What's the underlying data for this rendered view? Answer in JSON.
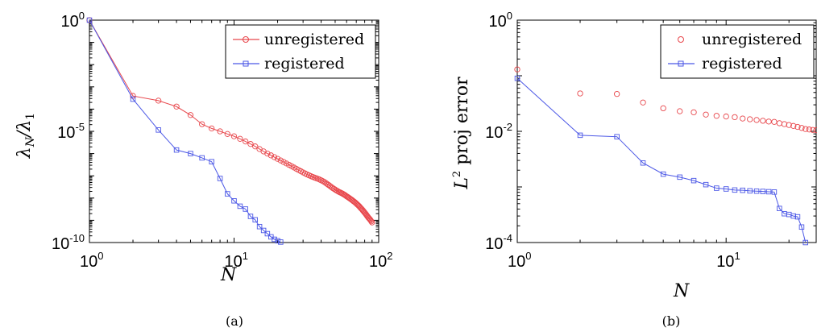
{
  "chart_data": [
    {
      "type": "line",
      "panel": "(a)",
      "xscale": "log",
      "yscale": "log",
      "xlim": [
        1,
        100
      ],
      "ylim": [
        1e-10,
        1
      ],
      "x_ticks": [
        {
          "base": "10",
          "exp": "0",
          "value": 1
        },
        {
          "base": "10",
          "exp": "1",
          "value": 10
        },
        {
          "base": "10",
          "exp": "2",
          "value": 100
        }
      ],
      "y_ticks": [
        {
          "base": "10",
          "exp": "0",
          "value": 1
        },
        {
          "base": "10",
          "exp": "-5",
          "value": 1e-05
        },
        {
          "base": "10",
          "exp": "-10",
          "value": 1e-10
        }
      ],
      "xlabel": "N",
      "ylabel": "λN/λ1",
      "grid": false,
      "legend_position": "top-right",
      "series": [
        {
          "name": "unregistered",
          "color": "#e8474c",
          "marker": "circle",
          "x": [
            1,
            2,
            3,
            4,
            5,
            6,
            7,
            8,
            9,
            10,
            11,
            12,
            13,
            14,
            15,
            16,
            17,
            18,
            19,
            20,
            21,
            22,
            23,
            24,
            25,
            26,
            27,
            28,
            29,
            30,
            31,
            32,
            33,
            34,
            35,
            36,
            37,
            38,
            39,
            40,
            41,
            42,
            43,
            44,
            45,
            46,
            47,
            48,
            49,
            50,
            51,
            52,
            53,
            54,
            55,
            56,
            57,
            58,
            59,
            60,
            61,
            62,
            63,
            64,
            65,
            66,
            67,
            68,
            69,
            70,
            71,
            72,
            73,
            74,
            75,
            76,
            77,
            78,
            79,
            80,
            81,
            82,
            83,
            84,
            85,
            86,
            87,
            88,
            89,
            90
          ],
          "y": [
            1,
            0.00039,
            0.00024,
            0.00013,
            5.4e-05,
            2.1e-05,
            1.35e-05,
            1e-05,
            7.6e-06,
            6e-06,
            4.6e-06,
            3.5e-06,
            2.7e-06,
            2.1e-06,
            1.6e-06,
            1.25e-06,
            1e-06,
            8.3e-07,
            6.9e-07,
            5.8e-07,
            4.9e-07,
            4.2e-07,
            3.6e-07,
            3.1e-07,
            2.7e-07,
            2.35e-07,
            2.05e-07,
            1.8e-07,
            1.6e-07,
            1.42e-07,
            1.27e-07,
            1.15e-07,
            1.05e-07,
            9.6e-08,
            8.9e-08,
            8.3e-08,
            7.8e-08,
            7.3e-08,
            6.8e-08,
            6.3e-08,
            5.8e-08,
            5.3e-08,
            4.8e-08,
            4.3e-08,
            3.9e-08,
            3.5e-08,
            3.15e-08,
            2.85e-08,
            2.6e-08,
            2.4e-08,
            2.2e-08,
            2.05e-08,
            1.9e-08,
            1.8e-08,
            1.7e-08,
            1.6e-08,
            1.5e-08,
            1.4e-08,
            1.3e-08,
            1.2e-08,
            1.12e-08,
            1.04e-08,
            9.7e-09,
            9e-09,
            8.4e-09,
            7.8e-09,
            7.2e-09,
            6.7e-09,
            6.2e-09,
            5.7e-09,
            5.2e-09,
            4.8e-09,
            4.4e-09,
            4e-09,
            3.6e-09,
            3.3e-09,
            3e-09,
            2.7e-09,
            2.45e-09,
            2.2e-09,
            2e-09,
            1.8e-09,
            1.6e-09,
            1.45e-09,
            1.3e-09,
            1.2e-09,
            1.1e-09,
            1e-09,
            9e-10,
            8e-10
          ]
        },
        {
          "name": "registered",
          "color": "#4b57e6",
          "marker": "square",
          "x": [
            1,
            2,
            3,
            4,
            5,
            6,
            7,
            8,
            9,
            10,
            11,
            12,
            13,
            14,
            15,
            16,
            17,
            18,
            19,
            20,
            21
          ],
          "y": [
            1,
            0.00028,
            1.15e-05,
            1.45e-06,
            1e-06,
            6.4e-07,
            4.3e-07,
            7.6e-08,
            1.55e-08,
            7.5e-09,
            4.3e-09,
            3.2e-09,
            1.5e-09,
            1.05e-09,
            5.2e-10,
            3.5e-10,
            2.5e-10,
            1.8e-10,
            1.4e-10,
            1.2e-10,
            1.05e-10
          ]
        }
      ]
    },
    {
      "type": "line",
      "panel": "(b)",
      "xscale": "log",
      "yscale": "log",
      "xlim": [
        1,
        27
      ],
      "ylim": [
        0.0001,
        1
      ],
      "x_ticks": [
        {
          "base": "10",
          "exp": "0",
          "value": 1
        },
        {
          "base": "10",
          "exp": "1",
          "value": 10
        }
      ],
      "y_ticks": [
        {
          "base": "10",
          "exp": "0",
          "value": 1
        },
        {
          "base": "10",
          "exp": "-2",
          "value": 0.01
        },
        {
          "base": "10",
          "exp": "-4",
          "value": 0.0001
        }
      ],
      "xlabel": "N",
      "ylabel": "L2 proj error",
      "grid": false,
      "legend_position": "top-right",
      "series": [
        {
          "name": "unregistered",
          "color": "#e8474c",
          "marker": "circle",
          "line": false,
          "x": [
            1,
            2,
            3,
            4,
            5,
            6,
            7,
            8,
            9,
            10,
            11,
            12,
            13,
            14,
            15,
            16,
            17,
            18,
            19,
            20,
            21,
            22,
            23,
            24,
            25,
            26,
            27
          ],
          "y": [
            0.13,
            0.048,
            0.047,
            0.033,
            0.026,
            0.023,
            0.022,
            0.02,
            0.019,
            0.0185,
            0.018,
            0.017,
            0.0165,
            0.016,
            0.0155,
            0.015,
            0.0148,
            0.014,
            0.0135,
            0.013,
            0.0125,
            0.012,
            0.0115,
            0.011,
            0.0108,
            0.0106,
            0.0105
          ]
        },
        {
          "name": "registered",
          "color": "#4b57e6",
          "marker": "square",
          "line": true,
          "x": [
            1,
            2,
            3,
            4,
            5,
            6,
            7,
            8,
            9,
            10,
            11,
            12,
            13,
            14,
            15,
            16,
            17,
            18,
            19,
            20,
            21,
            22,
            23,
            24
          ],
          "y": [
            0.09,
            0.0085,
            0.008,
            0.0027,
            0.0017,
            0.0015,
            0.0013,
            0.0011,
            0.00095,
            0.00092,
            0.00088,
            0.00087,
            0.00085,
            0.00084,
            0.00083,
            0.00082,
            0.00081,
            0.00041,
            0.00033,
            0.00032,
            0.0003,
            0.00029,
            0.00019,
            0.0001
          ]
        }
      ]
    }
  ],
  "captions": [
    "(a)",
    "(b)"
  ]
}
